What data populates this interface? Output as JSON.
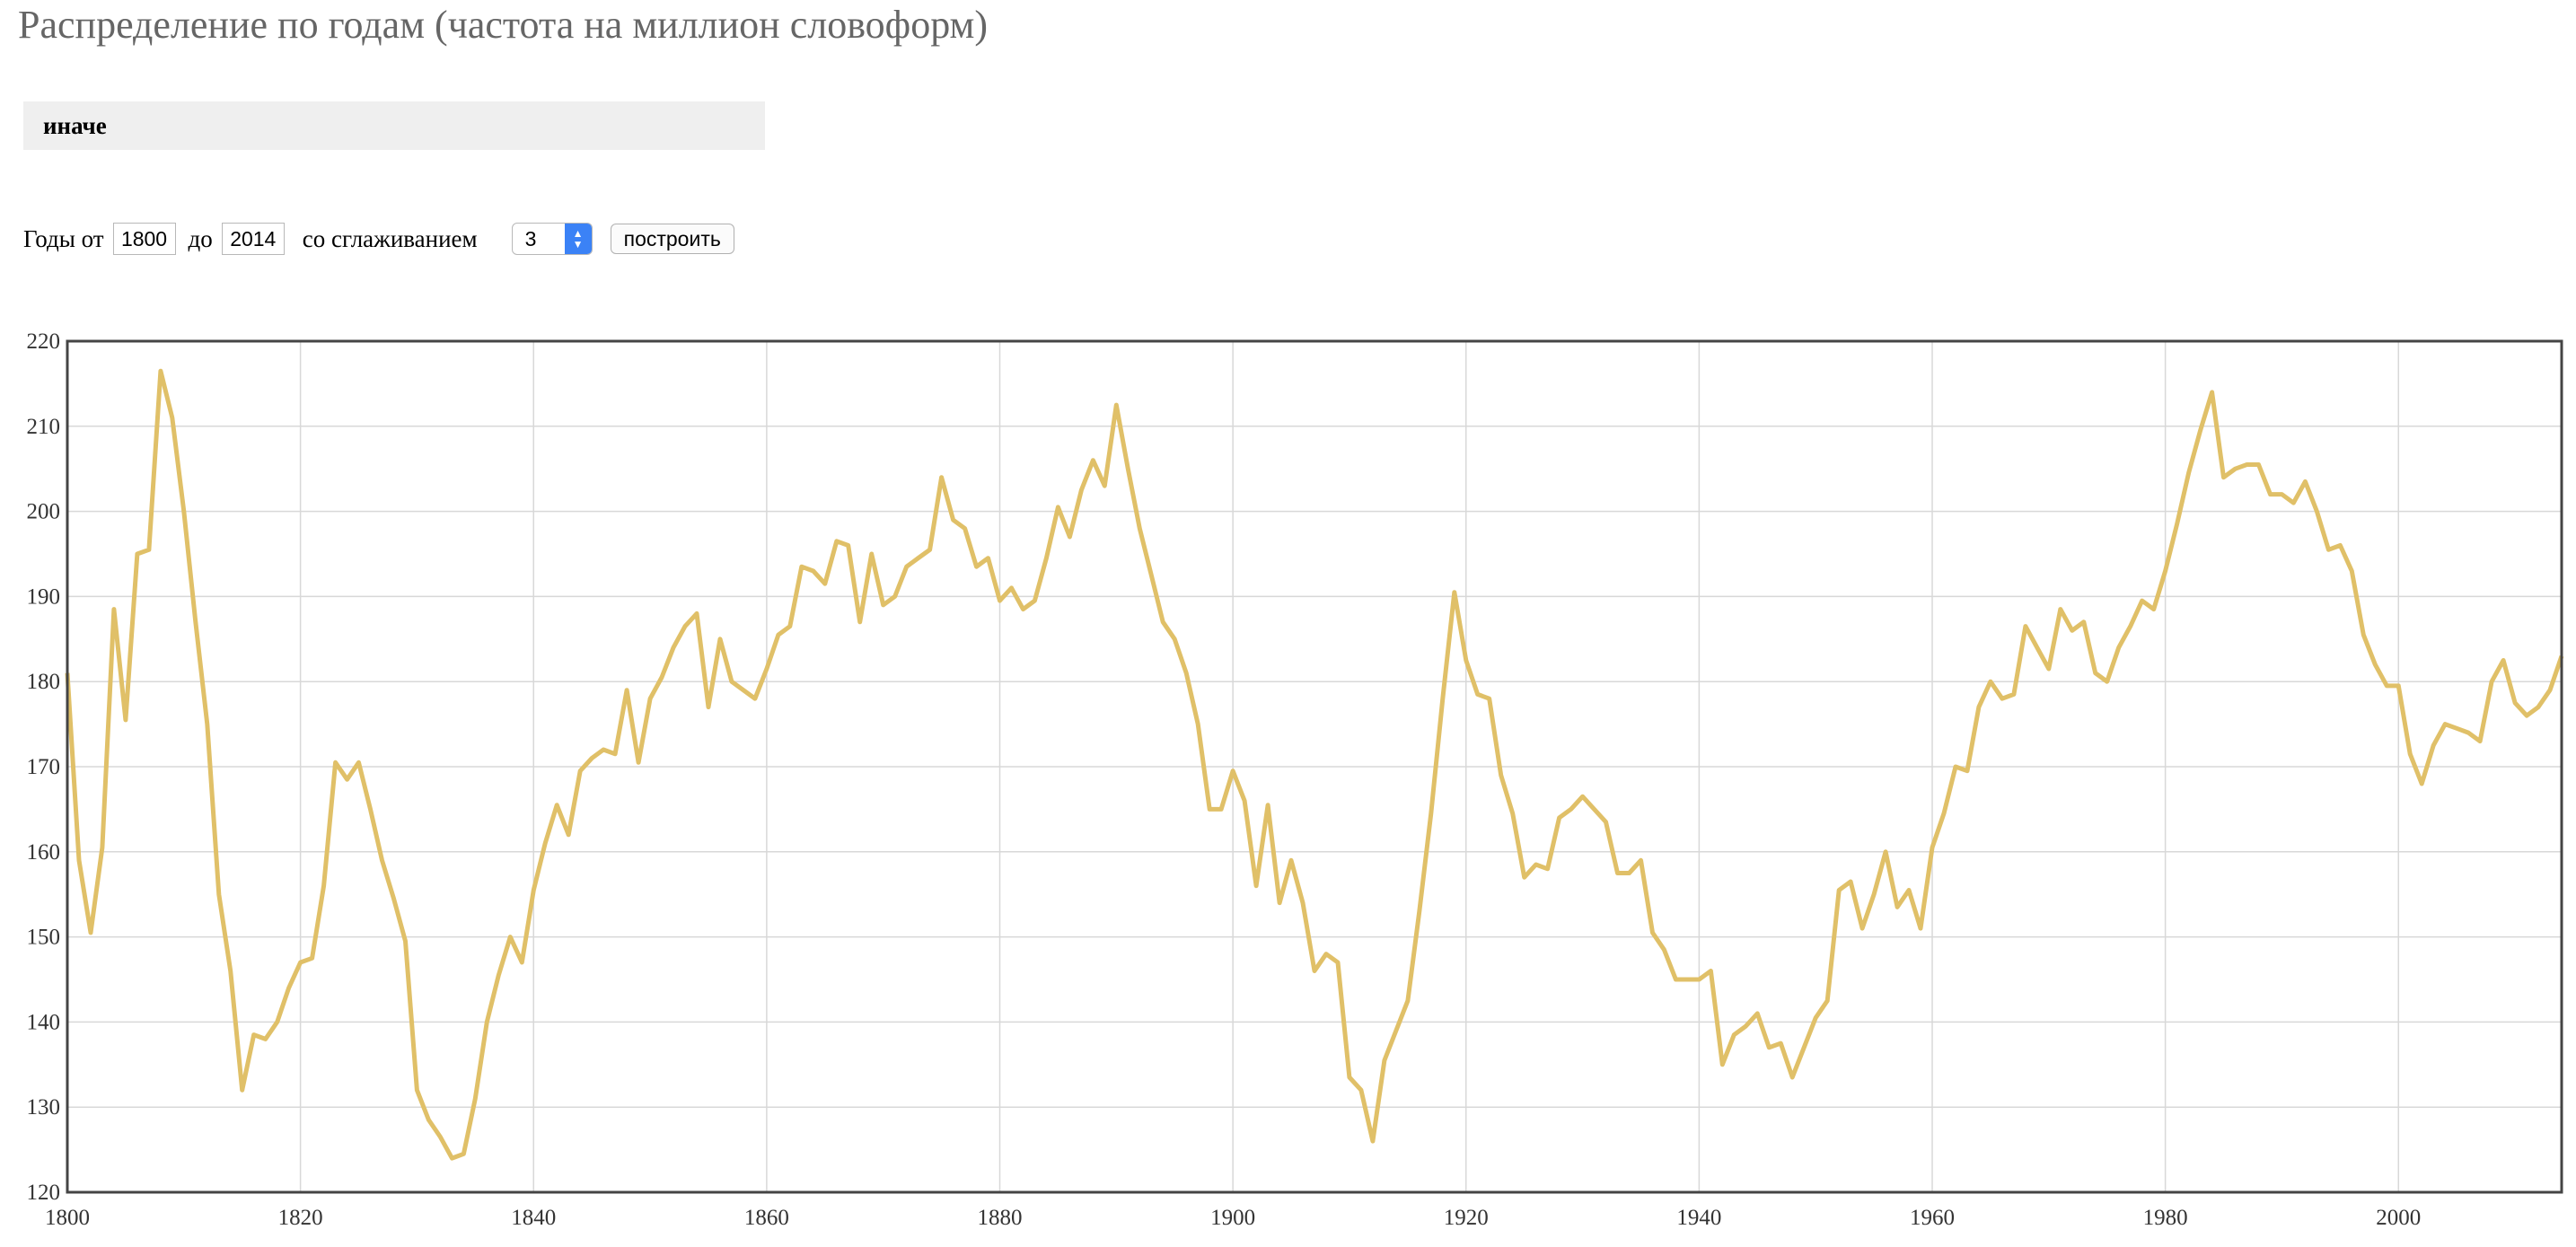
{
  "page": {
    "title": "Распределение по годам (частота на миллион словоформ)",
    "query": "иначе"
  },
  "controls": {
    "years_from_label": "Годы от",
    "year_from": "1800",
    "years_to_label": "до",
    "year_to": "2014",
    "smoothing_label": "со сглаживанием",
    "smoothing_value": "3",
    "build_label": "построить"
  },
  "chart_data": {
    "type": "line",
    "title": "",
    "xlabel": "",
    "ylabel": "",
    "xlim": [
      1800,
      2014
    ],
    "ylim": [
      120,
      220
    ],
    "x_ticks": [
      1800,
      1820,
      1840,
      1860,
      1880,
      1900,
      1920,
      1940,
      1960,
      1980,
      2000
    ],
    "y_ticks": [
      120,
      130,
      140,
      150,
      160,
      170,
      180,
      190,
      200,
      210,
      220
    ],
    "grid": true,
    "line_color": "#e0c068",
    "series": [
      {
        "x": [
          1800,
          1801,
          1802,
          1803,
          1804,
          1805,
          1806,
          1807,
          1808,
          1809,
          1810,
          1811,
          1812,
          1813,
          1814,
          1815,
          1816,
          1817,
          1818,
          1819,
          1820,
          1821,
          1822,
          1823,
          1824,
          1825,
          1826,
          1827,
          1828,
          1829,
          1830,
          1831,
          1832,
          1833,
          1834,
          1835,
          1836,
          1837,
          1838,
          1839,
          1840,
          1841,
          1842,
          1843,
          1844,
          1845,
          1846,
          1847,
          1848,
          1849,
          1850,
          1851,
          1852,
          1853,
          1854,
          1855,
          1856,
          1857,
          1858,
          1859,
          1860,
          1861,
          1862,
          1863,
          1864,
          1865,
          1866,
          1867,
          1868,
          1869,
          1870,
          1871,
          1872,
          1873,
          1874,
          1875,
          1876,
          1877,
          1878,
          1879,
          1880,
          1881,
          1882,
          1883,
          1884,
          1885,
          1886,
          1887,
          1888,
          1889,
          1890,
          1891,
          1892,
          1893,
          1894,
          1895,
          1896,
          1897,
          1898,
          1899,
          1900,
          1901,
          1902,
          1903,
          1904,
          1905,
          1906,
          1907,
          1908,
          1909,
          1910,
          1911,
          1912,
          1913,
          1914,
          1915,
          1916,
          1917,
          1918,
          1919,
          1920,
          1921,
          1922,
          1923,
          1924,
          1925,
          1926,
          1927,
          1928,
          1929,
          1930,
          1931,
          1932,
          1933,
          1934,
          1935,
          1936,
          1937,
          1938,
          1939,
          1940,
          1941,
          1942,
          1943,
          1944,
          1945,
          1946,
          1947,
          1948,
          1949,
          1950,
          1951,
          1952,
          1953,
          1954,
          1955,
          1956,
          1957,
          1958,
          1959,
          1960,
          1961,
          1962,
          1963,
          1964,
          1965,
          1966,
          1967,
          1968,
          1969,
          1970,
          1971,
          1972,
          1973,
          1974,
          1975,
          1976,
          1977,
          1978,
          1979,
          1980,
          1981,
          1982,
          1983,
          1984,
          1985,
          1986,
          1987,
          1988,
          1989,
          1990,
          1991,
          1992,
          1993,
          1994,
          1995,
          1996,
          1997,
          1998,
          1999,
          2000,
          2001,
          2002,
          2003,
          2004,
          2005,
          2006,
          2007,
          2008,
          2009,
          2010,
          2011,
          2012,
          2013,
          2014
        ],
        "values": [
          181,
          159,
          150.5,
          160.5,
          188.5,
          175.5,
          195,
          195.5,
          216.5,
          211,
          200,
          187,
          175,
          155,
          146,
          132,
          138.5,
          138,
          140,
          144,
          147,
          147.5,
          156,
          170.5,
          168.5,
          170.5,
          165,
          159,
          154.5,
          149.5,
          132,
          128.5,
          126.5,
          124,
          124.5,
          131,
          140,
          145.5,
          150,
          147,
          155.5,
          161,
          165.5,
          162,
          169.5,
          171,
          172,
          171.5,
          179,
          170.5,
          178,
          180.5,
          184,
          186.5,
          188,
          177,
          185,
          180,
          179,
          178,
          181.5,
          185.5,
          186.5,
          193.5,
          193,
          191.5,
          196.5,
          196,
          187,
          195,
          189,
          190,
          193.5,
          194.5,
          195.5,
          204,
          199,
          198,
          193.5,
          194.5,
          189.5,
          191,
          188.5,
          189.5,
          194.5,
          200.5,
          197,
          202.5,
          206,
          203,
          212.5,
          205,
          198,
          192.5,
          187,
          185,
          181,
          175,
          165,
          165,
          169.5,
          166,
          156,
          165.5,
          154,
          159,
          154,
          146,
          148,
          147,
          133.5,
          132,
          126,
          135.5,
          139,
          142.5,
          153,
          164.5,
          178,
          190.5,
          182.5,
          178.5,
          178,
          169,
          164.5,
          157,
          158.5,
          158,
          164,
          165,
          166.5,
          165,
          163.5,
          157.5,
          157.5,
          159,
          150.5,
          148.5,
          145,
          145,
          145,
          146,
          135,
          138.5,
          139.5,
          141,
          137,
          137.5,
          133.5,
          137,
          140.5,
          142.5,
          155.5,
          156.5,
          151,
          155,
          160,
          153.5,
          155.5,
          151,
          160.5,
          164.5,
          170,
          169.5,
          177,
          180,
          178,
          178.5,
          186.5,
          184,
          181.5,
          188.5,
          186,
          187,
          181,
          180,
          184,
          186.5,
          189.5,
          188.5,
          193,
          198.5,
          204.5,
          209.5,
          214,
          204,
          205,
          205.5,
          205.5,
          202,
          202,
          201,
          203.5,
          200,
          195.5,
          196,
          193,
          185.5,
          182,
          179.5,
          179.5,
          171.5,
          168,
          172.5,
          175,
          174.5,
          174,
          173,
          180,
          182.5,
          177.5,
          176,
          177,
          179,
          183
        ]
      }
    ]
  }
}
